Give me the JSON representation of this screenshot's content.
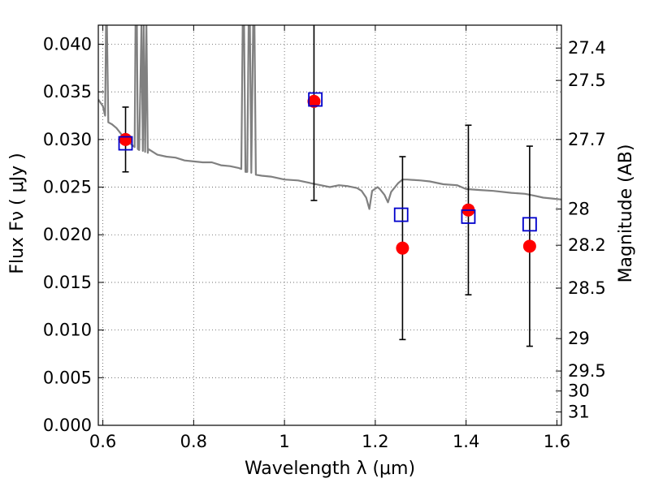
{
  "chart_data": {
    "type": "scatter",
    "xlabel": "Wavelength  λ (μm)",
    "ylabel": "Flux  Fν  ( μJy )",
    "ylabel_right": "Magnitude (AB)",
    "xlim": [
      0.59,
      1.61
    ],
    "ylim": [
      0.0,
      0.042
    ],
    "xticks": [
      0.6,
      0.8,
      1.0,
      1.2,
      1.4,
      1.6
    ],
    "xtick_labels": [
      "0.6",
      "0.8",
      "1",
      "1.2",
      "1.4",
      "1.6"
    ],
    "yticks": [
      0.0,
      0.005,
      0.01,
      0.015,
      0.02,
      0.025,
      0.03,
      0.035,
      0.04
    ],
    "ytick_labels": [
      "0.000",
      "0.005",
      "0.010",
      "0.015",
      "0.020",
      "0.025",
      "0.030",
      "0.035",
      "0.040"
    ],
    "right_ticks": [
      {
        "label": "27.4",
        "flux": 0.0396
      },
      {
        "label": "27.5",
        "flux": 0.0362
      },
      {
        "label": "27.7",
        "flux": 0.03
      },
      {
        "label": "28",
        "flux": 0.0227
      },
      {
        "label": "28.2",
        "flux": 0.0189
      },
      {
        "label": "28.5",
        "flux": 0.0144
      },
      {
        "label": "29",
        "flux": 0.0091
      },
      {
        "label": "29.5",
        "flux": 0.0057
      },
      {
        "label": "30",
        "flux": 0.0036
      },
      {
        "label": "31",
        "flux": 0.0014
      }
    ],
    "grid": true,
    "series": [
      {
        "kind": "observed",
        "marker": "filled-circle",
        "color": "#ff0000",
        "points": [
          {
            "x": 0.65,
            "y": 0.03,
            "yerr": 0.0034
          },
          {
            "x": 1.065,
            "y": 0.034,
            "yerr": 0.0104
          },
          {
            "x": 1.26,
            "y": 0.0186,
            "yerr": 0.0096
          },
          {
            "x": 1.405,
            "y": 0.0226,
            "yerr": 0.0089
          },
          {
            "x": 1.54,
            "y": 0.0188,
            "yerr": 0.0105
          }
        ]
      },
      {
        "kind": "model",
        "marker": "open-square",
        "color": "#0000cc",
        "points": [
          {
            "x": 0.65,
            "y": 0.0296
          },
          {
            "x": 1.068,
            "y": 0.0342
          },
          {
            "x": 1.257,
            "y": 0.0221
          },
          {
            "x": 1.405,
            "y": 0.0219
          },
          {
            "x": 1.54,
            "y": 0.0211
          }
        ]
      },
      {
        "kind": "template-spectrum",
        "color": "#808080",
        "points": [
          [
            0.59,
            0.0342
          ],
          [
            0.6,
            0.0335
          ],
          [
            0.605,
            0.0325
          ],
          [
            0.607,
            0.042
          ],
          [
            0.609,
            0.042
          ],
          [
            0.612,
            0.0318
          ],
          [
            0.62,
            0.0316
          ],
          [
            0.63,
            0.0312
          ],
          [
            0.64,
            0.0306
          ],
          [
            0.65,
            0.03
          ],
          [
            0.66,
            0.0296
          ],
          [
            0.67,
            0.0292
          ],
          [
            0.672,
            0.042
          ],
          [
            0.675,
            0.042
          ],
          [
            0.677,
            0.029
          ],
          [
            0.68,
            0.0289
          ],
          [
            0.685,
            0.042
          ],
          [
            0.688,
            0.0288
          ],
          [
            0.69,
            0.042
          ],
          [
            0.693,
            0.0287
          ],
          [
            0.696,
            0.042
          ],
          [
            0.699,
            0.0286
          ],
          [
            0.7,
            0.029
          ],
          [
            0.72,
            0.0284
          ],
          [
            0.74,
            0.0282
          ],
          [
            0.76,
            0.0281
          ],
          [
            0.78,
            0.0278
          ],
          [
            0.8,
            0.0277
          ],
          [
            0.82,
            0.0276
          ],
          [
            0.84,
            0.0276
          ],
          [
            0.86,
            0.0273
          ],
          [
            0.88,
            0.0272
          ],
          [
            0.9,
            0.027
          ],
          [
            0.905,
            0.0269
          ],
          [
            0.908,
            0.042
          ],
          [
            0.911,
            0.042
          ],
          [
            0.914,
            0.0266
          ],
          [
            0.918,
            0.0266
          ],
          [
            0.921,
            0.042
          ],
          [
            0.924,
            0.042
          ],
          [
            0.927,
            0.0265
          ],
          [
            0.931,
            0.042
          ],
          [
            0.934,
            0.042
          ],
          [
            0.937,
            0.0263
          ],
          [
            0.95,
            0.0262
          ],
          [
            0.97,
            0.0261
          ],
          [
            1.0,
            0.0258
          ],
          [
            1.03,
            0.0257
          ],
          [
            1.06,
            0.0254
          ],
          [
            1.08,
            0.0252
          ],
          [
            1.1,
            0.025
          ],
          [
            1.12,
            0.0252
          ],
          [
            1.14,
            0.0251
          ],
          [
            1.16,
            0.0249
          ],
          [
            1.17,
            0.0246
          ],
          [
            1.18,
            0.0239
          ],
          [
            1.187,
            0.0227
          ],
          [
            1.193,
            0.0246
          ],
          [
            1.205,
            0.025
          ],
          [
            1.21,
            0.0248
          ],
          [
            1.22,
            0.0242
          ],
          [
            1.228,
            0.0234
          ],
          [
            1.235,
            0.0245
          ],
          [
            1.25,
            0.0254
          ],
          [
            1.26,
            0.0258
          ],
          [
            1.27,
            0.0258
          ],
          [
            1.3,
            0.0257
          ],
          [
            1.32,
            0.0256
          ],
          [
            1.35,
            0.0253
          ],
          [
            1.38,
            0.0252
          ],
          [
            1.4,
            0.0248
          ],
          [
            1.43,
            0.0247
          ],
          [
            1.46,
            0.0246
          ],
          [
            1.5,
            0.0244
          ],
          [
            1.53,
            0.0243
          ],
          [
            1.55,
            0.0241
          ],
          [
            1.57,
            0.0239
          ],
          [
            1.59,
            0.0238
          ],
          [
            1.61,
            0.0237
          ]
        ]
      }
    ]
  }
}
